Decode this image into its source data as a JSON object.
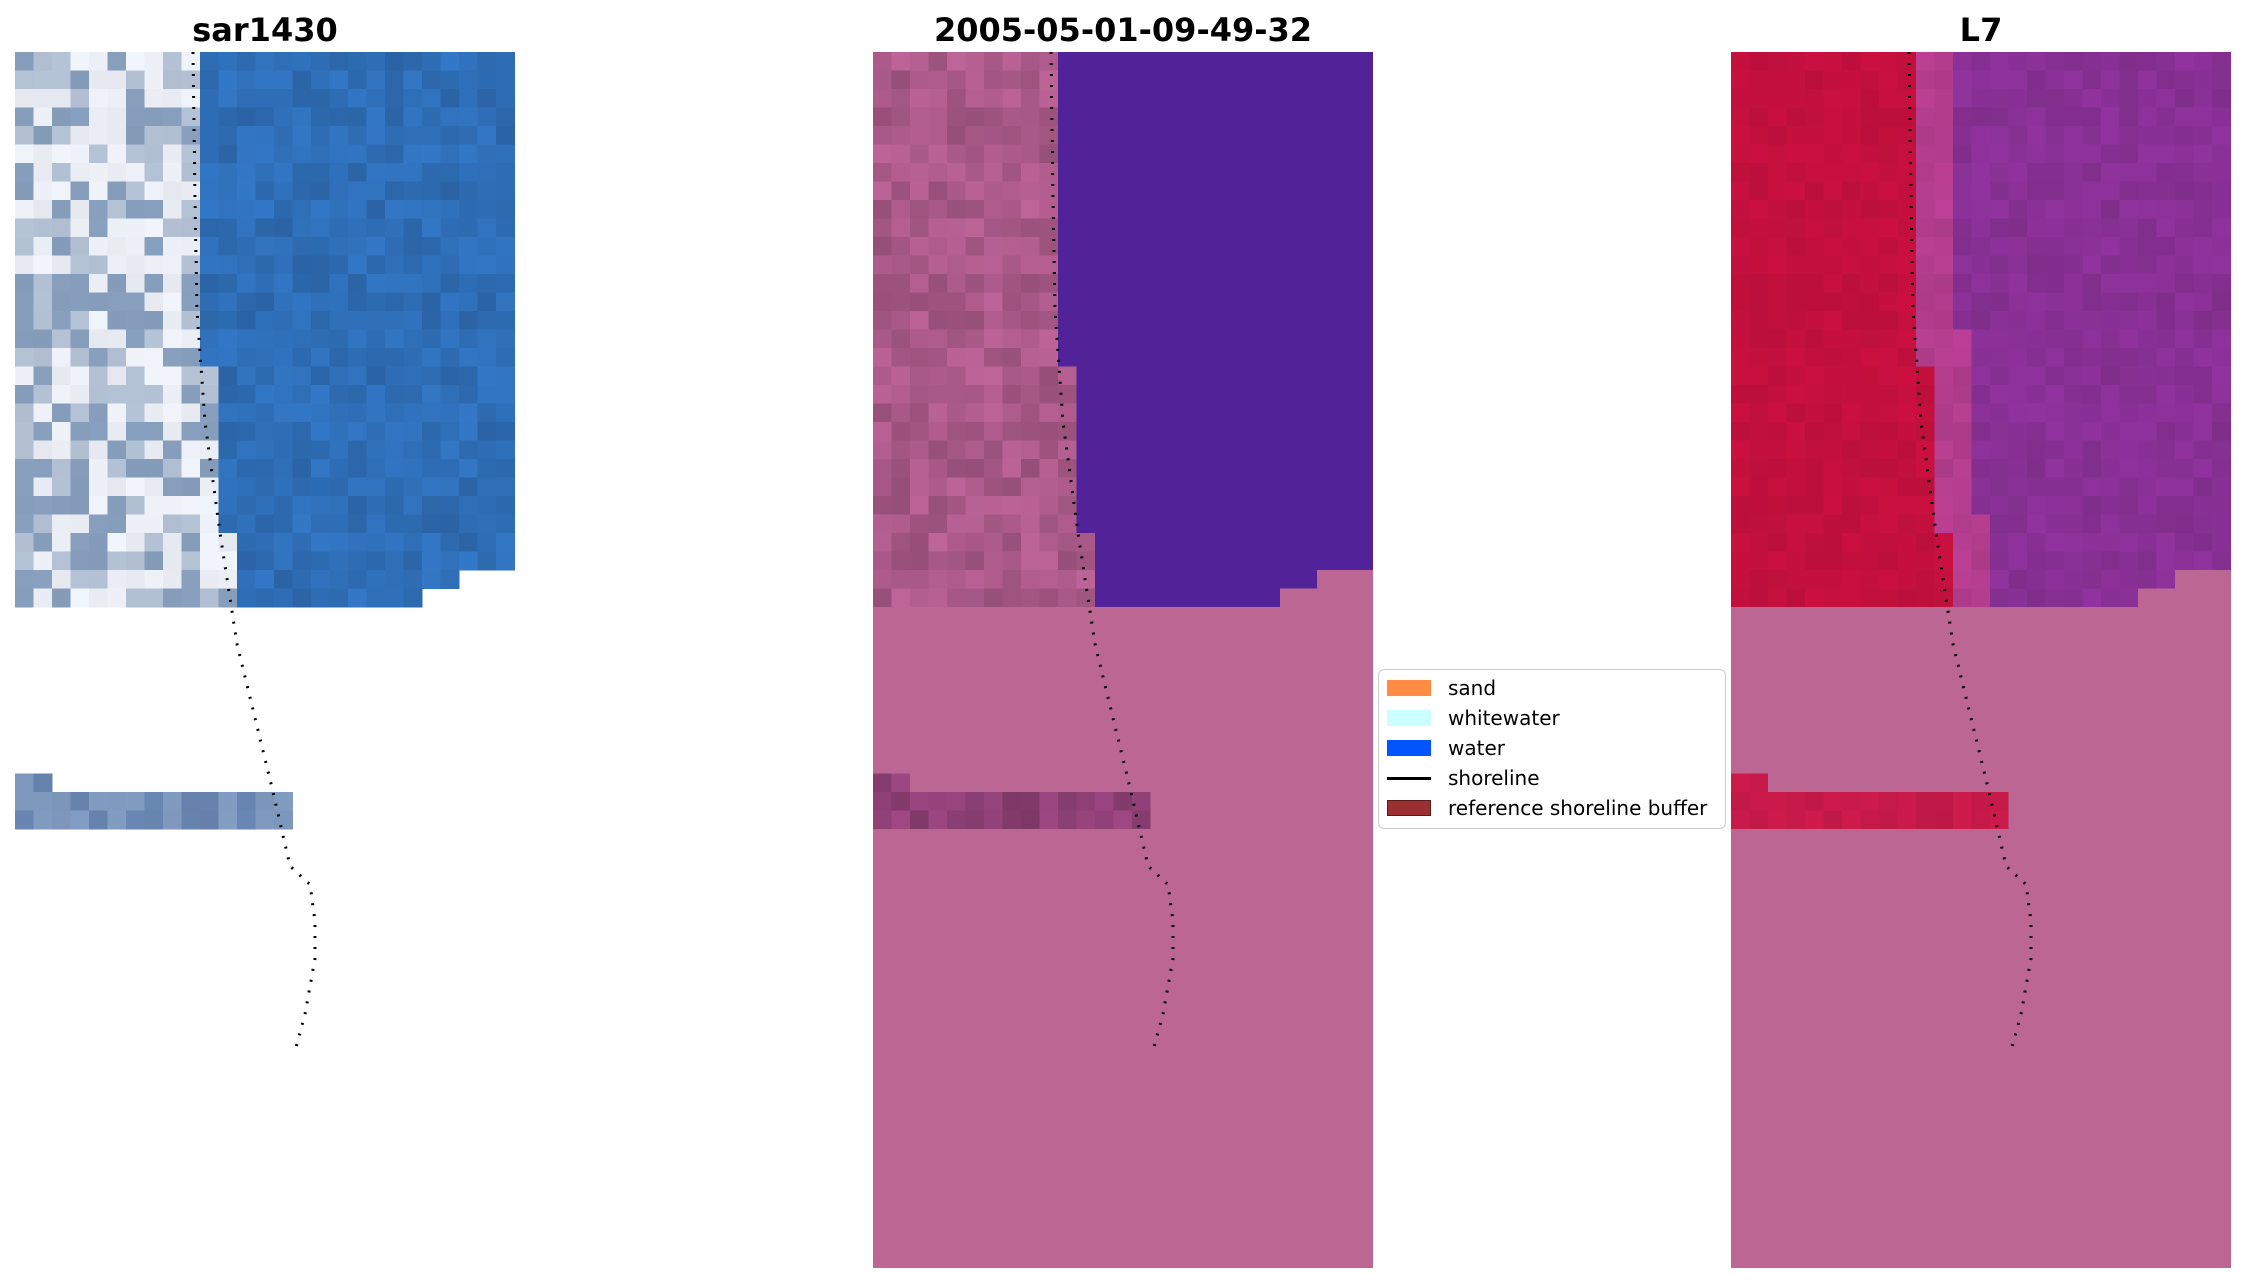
{
  "panels": [
    {
      "title": "sar1430",
      "style": "rgb"
    },
    {
      "title": "2005-05-01-09-49-32",
      "style": "classified"
    },
    {
      "title": "L7",
      "style": "false-color"
    }
  ],
  "legend": {
    "items": [
      {
        "label": "sand",
        "color": "#ff8c42",
        "kind": "patch"
      },
      {
        "label": "whitewater",
        "color": "#ccffff",
        "kind": "patch"
      },
      {
        "label": "water",
        "color": "#0055ff",
        "kind": "patch"
      },
      {
        "label": "shoreline",
        "color": "#000000",
        "kind": "line"
      },
      {
        "label": "reference shoreline buffer",
        "color": "#9b3030",
        "kind": "patch"
      }
    ]
  },
  "colors": {
    "rgb_water": "#2f6fb8",
    "rgb_land": "#c8d2e2",
    "class_water": "#522398",
    "class_land": "#b66092",
    "class_nodata": "#bc6693",
    "l7_land": "#c5103e",
    "l7_water": "#8b3198",
    "l7_nodata": "#bc6693",
    "shoreline": "#000000"
  }
}
